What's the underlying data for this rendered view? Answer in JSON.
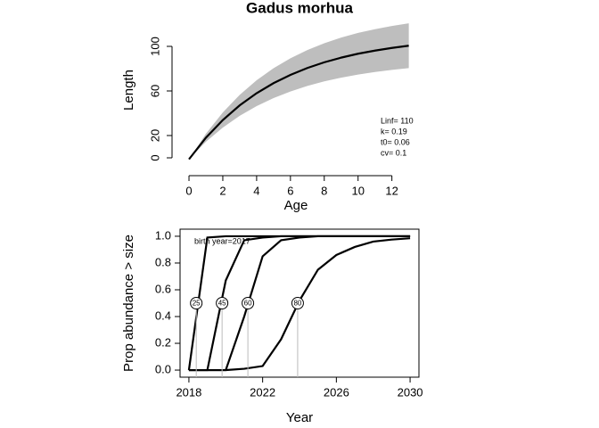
{
  "chart_data": [
    {
      "type": "line",
      "title": "Gadus morhua",
      "x_label": "Age",
      "y_label": "Length",
      "x": [
        0,
        1,
        2,
        3,
        4,
        5,
        6,
        7,
        8,
        9,
        10,
        11,
        12,
        13
      ],
      "values": [
        -1.3,
        18.0,
        33.9,
        47.1,
        58.0,
        67.0,
        74.4,
        80.6,
        85.7,
        89.9,
        93.4,
        96.2,
        98.6,
        100.6
      ],
      "band_lower": [
        -1.0,
        14.4,
        27.1,
        37.7,
        46.4,
        53.6,
        59.5,
        64.5,
        68.6,
        71.9,
        74.7,
        77.0,
        78.9,
        80.5
      ],
      "band_upper": [
        -1.5,
        21.6,
        40.7,
        56.5,
        69.6,
        80.4,
        89.3,
        96.7,
        102.8,
        107.9,
        112.1,
        115.4,
        118.3,
        120.7
      ],
      "color": "#000000",
      "band_color": "#bebebe",
      "xlim": [
        -0.95,
        13.6
      ],
      "ylim": [
        -6.4,
        128
      ],
      "xticks": [
        0,
        2,
        4,
        6,
        8,
        10,
        12
      ],
      "yticks": [
        0,
        20,
        60,
        100
      ],
      "box": false,
      "annotations": [
        "Linf= 110",
        "k= 0.19",
        "t0= 0.06",
        "cv= 0.1"
      ]
    },
    {
      "type": "line",
      "x_label": "Year",
      "y_label": "Prop abundance > size",
      "x": [
        2018,
        2019,
        2020,
        2021,
        2022,
        2023,
        2024,
        2025,
        2026,
        2027,
        2028,
        2029,
        2030
      ],
      "series": [
        {
          "name": "25",
          "color": "#000000",
          "cross_x": 2018.4,
          "values": [
            0,
            0.99,
            1,
            1,
            1,
            1,
            1,
            1,
            1,
            1,
            1,
            1,
            1
          ]
        },
        {
          "name": "45",
          "color": "#000000",
          "cross_x": 2019.8,
          "values": [
            0,
            0,
            0.67,
            0.97,
            0.99,
            1,
            1,
            1,
            1,
            1,
            1,
            1,
            1
          ]
        },
        {
          "name": "60",
          "color": "#000000",
          "cross_x": 2021.2,
          "values": [
            0,
            0,
            0,
            0.4,
            0.85,
            0.97,
            0.99,
            1,
            1,
            1,
            1,
            1,
            1
          ]
        },
        {
          "name": "80",
          "color": "#000000",
          "cross_x": 2023.9,
          "values": [
            0,
            0,
            0,
            0.01,
            0.03,
            0.23,
            0.52,
            0.75,
            0.86,
            0.92,
            0.96,
            0.975,
            0.985
          ]
        }
      ],
      "label_y": 0.5,
      "xlim": [
        2017.52,
        2030.48
      ],
      "ylim": [
        -0.053,
        1.053
      ],
      "xticks": [
        2018,
        2022,
        2026,
        2030
      ],
      "yticks": [
        {
          "value": 0,
          "label": "0.0"
        },
        0.2,
        0.4,
        0.6,
        0.8,
        {
          "value": 1,
          "label": "1.0"
        }
      ],
      "box": true,
      "annotations": [
        "birth year=2017"
      ]
    }
  ]
}
